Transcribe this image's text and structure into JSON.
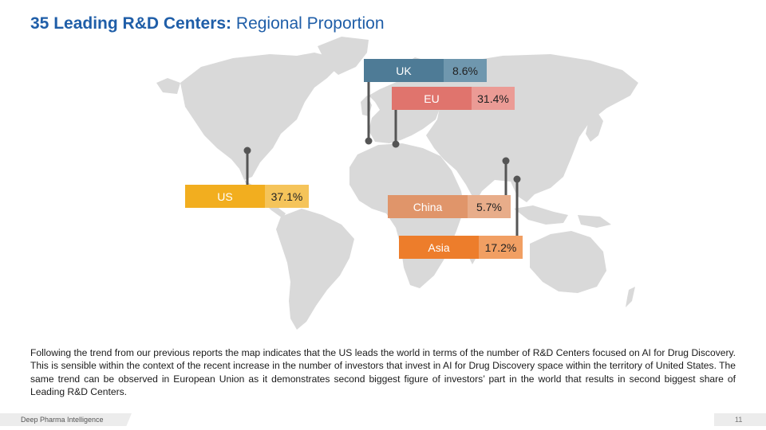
{
  "title": {
    "bold": "35 Leading R&D Centers:",
    "regular": " Regional Proportion"
  },
  "regions": [
    {
      "id": "uk",
      "name": "UK",
      "value": "8.6%",
      "color": "#4e7b96",
      "value_bg": "#6f97ae"
    },
    {
      "id": "eu",
      "name": "EU",
      "value": "31.4%",
      "color": "#e0746d",
      "value_bg": "#eb9b95"
    },
    {
      "id": "us",
      "name": "US",
      "value": "37.1%",
      "color": "#f2ae1f",
      "value_bg": "#f5c45a"
    },
    {
      "id": "china",
      "name": "China",
      "value": "5.7%",
      "color": "#e0956a",
      "value_bg": "#e8ad8a"
    },
    {
      "id": "asia",
      "name": "Asia",
      "value": "17.2%",
      "color": "#ed7d2b",
      "value_bg": "#f19f63"
    }
  ],
  "description": "Following the trend from our previous reports the map indicates that the US leads the world in terms of the number of R&D Centers focused on AI for Drug Discovery. This is sensible within the context of the recent increase in the number of investors that invest in AI for Drug Discovery space within the territory of United States. The same trend can be observed in European Union as it demonstrates second biggest figure of investors’ part in the world that results in second biggest share of Leading R&D Centers.",
  "footer": {
    "brand": "Deep Pharma Intelligence",
    "page": "11"
  },
  "colors": {
    "title": "#1f5ea8",
    "map_land": "#d9d9d9",
    "pin": "#555555"
  }
}
